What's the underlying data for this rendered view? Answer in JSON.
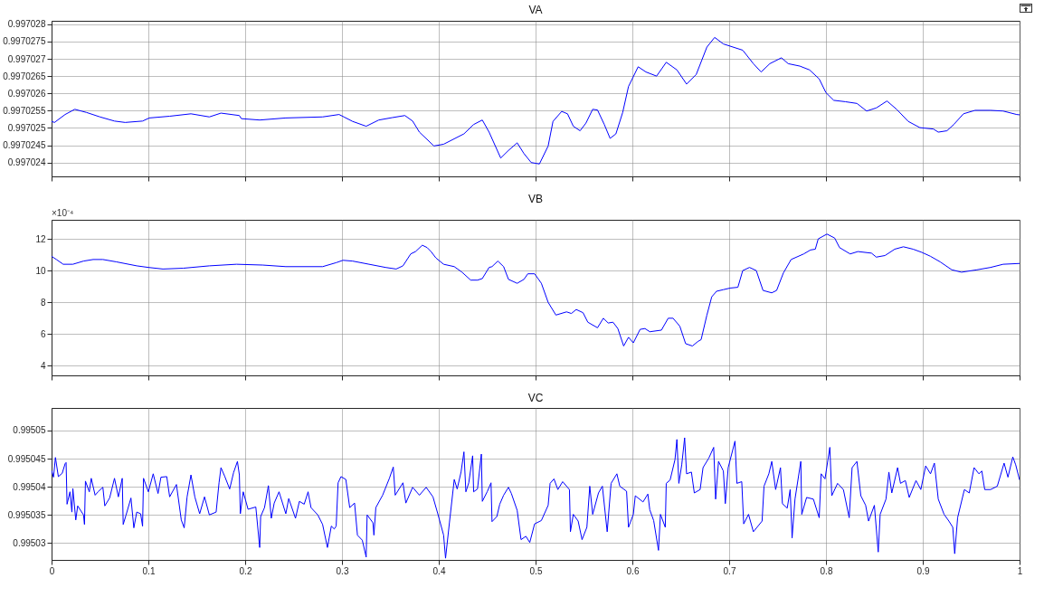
{
  "chart_data": [
    {
      "type": "line",
      "title": "VA",
      "color": "#0000ff",
      "xlim": [
        0,
        1
      ],
      "xticks": [
        0,
        0.1,
        0.2,
        0.3,
        0.4,
        0.5,
        0.6,
        0.7,
        0.8,
        0.9,
        1
      ],
      "ylim": [
        0.9970236,
        0.9970281
      ],
      "yticks": [
        0.997024,
        0.9970245,
        0.997025,
        0.9970255,
        0.997026,
        0.9970265,
        0.997027,
        0.9970275,
        0.997028
      ],
      "grid": true,
      "tick_labels": "y",
      "x": [
        0,
        0.003,
        0.014,
        0.024,
        0.036,
        0.05,
        0.065,
        0.076,
        0.094,
        0.101,
        0.122,
        0.144,
        0.163,
        0.175,
        0.194,
        0.196,
        0.215,
        0.242,
        0.28,
        0.297,
        0.302,
        0.311,
        0.325,
        0.338,
        0.352,
        0.365,
        0.373,
        0.38,
        0.395,
        0.405,
        0.426,
        0.436,
        0.445,
        0.452,
        0.464,
        0.472,
        0.481,
        0.488,
        0.4955,
        0.504,
        0.513,
        0.518,
        0.527,
        0.533,
        0.539,
        0.546,
        0.552,
        0.559,
        0.564,
        0.571,
        0.577,
        0.583,
        0.59,
        0.596,
        0.606,
        0.614,
        0.625,
        0.635,
        0.646,
        0.656,
        0.666,
        0.677,
        0.685,
        0.694,
        0.714,
        0.725,
        0.733,
        0.742,
        0.754,
        0.761,
        0.773,
        0.783,
        0.793,
        0.8,
        0.808,
        0.82,
        0.832,
        0.842,
        0.852,
        0.863,
        0.873,
        0.885,
        0.897,
        0.911,
        0.916,
        0.925,
        0.932,
        0.942,
        0.954,
        0.97,
        0.983,
        0.997,
        1
      ],
      "values": [
        0.99702519,
        0.99702516,
        0.99702539,
        0.99702554,
        0.99702545,
        0.99702532,
        0.9970252,
        0.99702516,
        0.9970252,
        0.99702529,
        0.99702534,
        0.99702541,
        0.99702532,
        0.99702543,
        0.99702536,
        0.99702527,
        0.99702523,
        0.99702529,
        0.99702532,
        0.99702539,
        0.99702532,
        0.99702519,
        0.99702505,
        0.99702523,
        0.9970253,
        0.99702536,
        0.9970252,
        0.99702488,
        0.99702448,
        0.99702453,
        0.99702483,
        0.9970251,
        0.99702523,
        0.99702488,
        0.99702413,
        0.99702435,
        0.99702457,
        0.99702426,
        0.997024,
        0.99702396,
        0.99702448,
        0.99702519,
        0.99702548,
        0.99702541,
        0.99702505,
        0.99702492,
        0.99702514,
        0.99702554,
        0.99702552,
        0.9970251,
        0.9970247,
        0.99702483,
        0.99702545,
        0.9970262,
        0.99702677,
        0.99702662,
        0.9970265,
        0.9970269,
        0.99702668,
        0.99702627,
        0.99702655,
        0.99702734,
        0.99702762,
        0.99702743,
        0.99702725,
        0.99702686,
        0.99702662,
        0.99702686,
        0.99702703,
        0.99702686,
        0.99702679,
        0.99702668,
        0.99702642,
        0.99702602,
        0.9970258,
        0.99702576,
        0.99702571,
        0.99702549,
        0.99702558,
        0.99702578,
        0.99702554,
        0.99702519,
        0.99702501,
        0.99702497,
        0.99702488,
        0.99702492,
        0.9970251,
        0.99702541,
        0.99702551,
        0.99702551,
        0.99702549,
        0.99702539,
        0.99702538
      ]
    },
    {
      "type": "line",
      "title": "VB",
      "color": "#0000ff",
      "xlim": [
        0,
        1
      ],
      "xticks": [
        0,
        0.1,
        0.2,
        0.3,
        0.4,
        0.5,
        0.6,
        0.7,
        0.8,
        0.9,
        1
      ],
      "ylim": [
        3.4,
        13.2
      ],
      "yticks": [
        4,
        6,
        8,
        10,
        12
      ],
      "grid": true,
      "tick_labels": "y",
      "annotations": [
        "×10⁻⁴"
      ],
      "x": [
        0,
        0.005,
        0.012,
        0.022,
        0.033,
        0.043,
        0.053,
        0.067,
        0.088,
        0.1,
        0.115,
        0.136,
        0.163,
        0.191,
        0.218,
        0.242,
        0.28,
        0.294,
        0.301,
        0.311,
        0.328,
        0.345,
        0.356,
        0.363,
        0.371,
        0.376,
        0.383,
        0.388,
        0.392,
        0.397,
        0.405,
        0.416,
        0.424,
        0.433,
        0.44,
        0.445,
        0.452,
        0.455,
        0.461,
        0.467,
        0.472,
        0.481,
        0.488,
        0.492,
        0.499,
        0.506,
        0.513,
        0.521,
        0.532,
        0.537,
        0.542,
        0.549,
        0.554,
        0.564,
        0.57,
        0.575,
        0.58,
        0.585,
        0.591,
        0.596,
        0.601,
        0.608,
        0.613,
        0.618,
        0.63,
        0.637,
        0.642,
        0.649,
        0.655,
        0.662,
        0.668,
        0.671,
        0.677,
        0.682,
        0.687,
        0.694,
        0.701,
        0.709,
        0.714,
        0.721,
        0.728,
        0.735,
        0.744,
        0.749,
        0.756,
        0.764,
        0.777,
        0.784,
        0.789,
        0.792,
        0.801,
        0.809,
        0.814,
        0.825,
        0.833,
        0.847,
        0.852,
        0.861,
        0.871,
        0.88,
        0.89,
        0.899,
        0.908,
        0.918,
        0.93,
        0.94,
        0.956,
        0.97,
        0.983,
        1
      ],
      "values": [
        10.9,
        10.7,
        10.4,
        10.4,
        10.6,
        10.7,
        10.7,
        10.55,
        10.3,
        10.2,
        10.1,
        10.15,
        10.3,
        10.4,
        10.35,
        10.25,
        10.25,
        10.5,
        10.65,
        10.6,
        10.4,
        10.2,
        10.1,
        10.3,
        11.05,
        11.2,
        11.6,
        11.45,
        11.2,
        10.8,
        10.4,
        10.25,
        9.9,
        9.4,
        9.4,
        9.5,
        10.2,
        10.25,
        10.6,
        10.25,
        9.45,
        9.2,
        9.45,
        9.8,
        9.8,
        9.2,
        8.0,
        7.2,
        7.4,
        7.3,
        7.55,
        7.35,
        6.75,
        6.4,
        7.0,
        6.7,
        6.75,
        6.35,
        5.25,
        5.8,
        5.45,
        6.3,
        6.35,
        6.15,
        6.25,
        7.0,
        7.0,
        6.5,
        5.4,
        5.25,
        5.55,
        5.65,
        7.2,
        8.35,
        8.7,
        8.8,
        8.9,
        8.95,
        10.0,
        10.2,
        10.0,
        8.75,
        8.6,
        8.75,
        9.85,
        10.7,
        11.05,
        11.3,
        11.35,
        12.0,
        12.3,
        12.05,
        11.45,
        11.05,
        11.2,
        11.1,
        10.85,
        10.95,
        11.35,
        11.5,
        11.35,
        11.15,
        10.9,
        10.55,
        10.05,
        9.9,
        10.05,
        10.2,
        10.4,
        10.45
      ]
    },
    {
      "type": "line",
      "title": "VC",
      "color": "#0000ff",
      "xlim": [
        0,
        1
      ],
      "xticks": [
        0,
        0.1,
        0.2,
        0.3,
        0.4,
        0.5,
        0.6,
        0.7,
        0.8,
        0.9,
        1
      ],
      "ylim": [
        0.995027,
        0.995054
      ],
      "yticks": [
        0.99503,
        0.995035,
        0.99504,
        0.995045,
        0.99505
      ],
      "grid": true,
      "x": [
        0,
        0.002,
        0.004,
        0.007,
        0.011,
        0.014,
        0.015,
        0.016,
        0.019,
        0.021,
        0.022,
        0.025,
        0.027,
        0.033,
        0.034,
        0.035,
        0.039,
        0.041,
        0.045,
        0.048,
        0.053,
        0.055,
        0.06,
        0.065,
        0.069,
        0.073,
        0.074,
        0.077,
        0.082,
        0.085,
        0.088,
        0.092,
        0.094,
        0.095,
        0.1,
        0.105,
        0.11,
        0.113,
        0.119,
        0.122,
        0.129,
        0.134,
        0.137,
        0.14,
        0.144,
        0.148,
        0.153,
        0.158,
        0.163,
        0.17,
        0.173,
        0.175,
        0.179,
        0.184,
        0.188,
        0.192,
        0.194,
        0.195,
        0.198,
        0.203,
        0.211,
        0.215,
        0.216,
        0.22,
        0.224,
        0.227,
        0.23,
        0.235,
        0.242,
        0.245,
        0.252,
        0.256,
        0.261,
        0.265,
        0.268,
        0.275,
        0.28,
        0.285,
        0.289,
        0.292,
        0.294,
        0.296,
        0.299,
        0.304,
        0.308,
        0.313,
        0.316,
        0.321,
        0.325,
        0.326,
        0.332,
        0.333,
        0.335,
        0.342,
        0.349,
        0.353,
        0.355,
        0.363,
        0.366,
        0.373,
        0.38,
        0.387,
        0.394,
        0.399,
        0.405,
        0.407,
        0.411,
        0.416,
        0.419,
        0.423,
        0.426,
        0.428,
        0.431,
        0.435,
        0.436,
        0.44,
        0.444,
        0.445,
        0.45,
        0.454,
        0.455,
        0.46,
        0.463,
        0.467,
        0.472,
        0.475,
        0.481,
        0.485,
        0.49,
        0.494,
        0.499,
        0.506,
        0.513,
        0.515,
        0.519,
        0.523,
        0.528,
        0.535,
        0.536,
        0.539,
        0.544,
        0.548,
        0.553,
        0.556,
        0.559,
        0.565,
        0.569,
        0.574,
        0.578,
        0.584,
        0.587,
        0.594,
        0.596,
        0.601,
        0.603,
        0.611,
        0.616,
        0.618,
        0.622,
        0.627,
        0.629,
        0.634,
        0.635,
        0.639,
        0.644,
        0.646,
        0.648,
        0.651,
        0.654,
        0.656,
        0.661,
        0.664,
        0.67,
        0.673,
        0.679,
        0.684,
        0.686,
        0.689,
        0.694,
        0.696,
        0.699,
        0.706,
        0.708,
        0.713,
        0.715,
        0.72,
        0.725,
        0.734,
        0.736,
        0.741,
        0.744,
        0.748,
        0.753,
        0.755,
        0.76,
        0.763,
        0.765,
        0.768,
        0.774,
        0.775,
        0.78,
        0.787,
        0.793,
        0.795,
        0.799,
        0.804,
        0.806,
        0.812,
        0.818,
        0.824,
        0.827,
        0.832,
        0.836,
        0.841,
        0.844,
        0.85,
        0.854,
        0.856,
        0.862,
        0.865,
        0.868,
        0.874,
        0.877,
        0.882,
        0.886,
        0.893,
        0.898,
        0.903,
        0.908,
        0.912,
        0.916,
        0.922,
        0.927,
        0.931,
        0.933,
        0.936,
        0.943,
        0.948,
        0.953,
        0.958,
        0.961,
        0.964,
        0.97,
        0.977,
        0.984,
        0.988,
        0.993,
        0.996,
        1
      ],
      "values": [
        0.9950429,
        0.9950417,
        0.9950452,
        0.9950418,
        0.9950424,
        0.9950441,
        0.9950443,
        0.9950369,
        0.9950391,
        0.9950355,
        0.9950397,
        0.9950341,
        0.9950366,
        0.995035,
        0.9950333,
        0.995041,
        0.9950391,
        0.9950415,
        0.9950385,
        0.9950391,
        0.9950399,
        0.9950366,
        0.995038,
        0.9950415,
        0.9950382,
        0.9950415,
        0.9950333,
        0.995035,
        0.995038,
        0.9950327,
        0.9950355,
        0.9950352,
        0.995033,
        0.9950415,
        0.9950391,
        0.9950423,
        0.9950388,
        0.9950417,
        0.9950418,
        0.9950382,
        0.9950404,
        0.9950341,
        0.9950327,
        0.9950382,
        0.9950421,
        0.9950382,
        0.9950352,
        0.9950382,
        0.995035,
        0.9950355,
        0.9950407,
        0.9950434,
        0.9950418,
        0.9950396,
        0.9950425,
        0.9950445,
        0.9950421,
        0.9950352,
        0.9950391,
        0.995036,
        0.9950364,
        0.9950292,
        0.9950347,
        0.9950363,
        0.9950402,
        0.9950344,
        0.9950371,
        0.9950391,
        0.9950352,
        0.9950379,
        0.9950344,
        0.9950374,
        0.9950369,
        0.9950391,
        0.9950363,
        0.995035,
        0.9950333,
        0.9950292,
        0.995033,
        0.9950325,
        0.995033,
        0.9950407,
        0.9950418,
        0.9950413,
        0.9950363,
        0.9950371,
        0.9950314,
        0.9950305,
        0.9950275,
        0.995035,
        0.9950336,
        0.9950314,
        0.9950363,
        0.9950385,
        0.9950415,
        0.9950435,
        0.9950385,
        0.9950407,
        0.9950371,
        0.9950399,
        0.9950385,
        0.9950399,
        0.9950382,
        0.9950352,
        0.9950314,
        0.9950273,
        0.9950336,
        0.9950413,
        0.9950396,
        0.9950426,
        0.9950462,
        0.9950391,
        0.9950407,
        0.9950455,
        0.9950391,
        0.9950396,
        0.9950458,
        0.9950374,
        0.9950391,
        0.9950407,
        0.9950338,
        0.9950347,
        0.9950369,
        0.9950385,
        0.9950399,
        0.9950388,
        0.9950358,
        0.9950306,
        0.9950312,
        0.9950301,
        0.9950334,
        0.995034,
        0.9950367,
        0.9950406,
        0.9950414,
        0.9950395,
        0.9950409,
        0.9950395,
        0.995032,
        0.9950351,
        0.9950339,
        0.9950306,
        0.9950328,
        0.9950401,
        0.9950351,
        0.9950389,
        0.9950401,
        0.995032,
        0.9950406,
        0.9950423,
        0.9950401,
        0.9950392,
        0.9950328,
        0.9950351,
        0.9950384,
        0.9950373,
        0.9950387,
        0.9950359,
        0.995034,
        0.9950287,
        0.9950351,
        0.9950328,
        0.9950406,
        0.9950412,
        0.9950448,
        0.9950484,
        0.9950406,
        0.9950439,
        0.9950487,
        0.9950423,
        0.9950426,
        0.9950389,
        0.9950395,
        0.9950434,
        0.9950451,
        0.995047,
        0.9950378,
        0.9950445,
        0.9950428,
        0.995037,
        0.9950434,
        0.9950481,
        0.9950406,
        0.9950409,
        0.9950334,
        0.9950351,
        0.995032,
        0.9950339,
        0.9950401,
        0.9950423,
        0.9950445,
        0.9950395,
        0.9950434,
        0.995037,
        0.9950362,
        0.9950395,
        0.9950309,
        0.9950378,
        0.9950445,
        0.9950351,
        0.9950381,
        0.9950378,
        0.9950345,
        0.9950423,
        0.9950414,
        0.995047,
        0.9950384,
        0.9950406,
        0.9950395,
        0.9950345,
        0.9950434,
        0.9950445,
        0.9950384,
        0.9950367,
        0.9950339,
        0.9950367,
        0.9950284,
        0.9950351,
        0.9950378,
        0.9950426,
        0.9950389,
        0.9950434,
        0.9950406,
        0.9950411,
        0.9950381,
        0.9950411,
        0.9950395,
        0.9950437,
        0.9950423,
        0.9950442,
        0.9950378,
        0.9950351,
        0.9950339,
        0.9950328,
        0.9950281,
        0.9950345,
        0.9950395,
        0.9950389,
        0.9950434,
        0.9950423,
        0.9950428,
        0.9950395,
        0.9950395,
        0.9950401,
        0.9950442,
        0.9950417,
        0.9950453,
        0.9950439,
        0.9950412
      ]
    }
  ]
}
